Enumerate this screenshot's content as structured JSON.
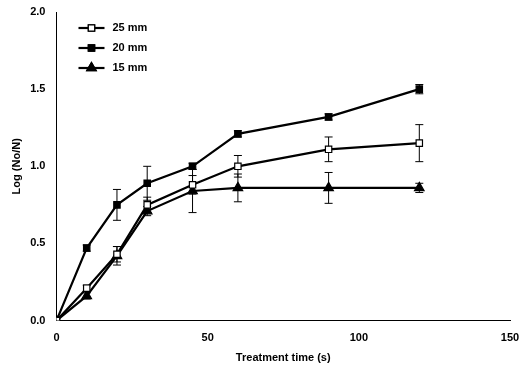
{
  "chart_data": {
    "type": "line",
    "x_label": "Treatment time (s)",
    "y_label": "Log (No/N)",
    "x": [
      0,
      10,
      20,
      30,
      45,
      60,
      90,
      120
    ],
    "series": [
      {
        "name": "25 mm",
        "color": "#000000",
        "marker": "square-open",
        "values": [
          0,
          0.21,
          0.43,
          0.75,
          0.88,
          1.0,
          1.11,
          1.15
        ],
        "errors": [
          0,
          0.02,
          0.05,
          0.05,
          0.06,
          0.07,
          0.08,
          0.12
        ]
      },
      {
        "name": "20 mm",
        "color": "#000000",
        "marker": "square",
        "values": [
          0,
          0.47,
          0.75,
          0.89,
          1.0,
          1.21,
          1.32,
          1.5
        ],
        "errors": [
          0,
          0.02,
          0.1,
          0.11,
          0.02,
          0.02,
          0.02,
          0.03
        ]
      },
      {
        "name": "15 mm",
        "color": "#000000",
        "marker": "triangle",
        "values": [
          0,
          0.16,
          0.42,
          0.71,
          0.84,
          0.86,
          0.86,
          0.86
        ],
        "errors": [
          0,
          0.02,
          0.06,
          0.03,
          0.14,
          0.09,
          0.1,
          0.03
        ]
      }
    ],
    "xlim": [
      0,
      150
    ],
    "xticks": [
      0,
      50,
      100,
      150
    ],
    "ylim": [
      0,
      2
    ],
    "yticks": [
      {
        "value": 0,
        "label": "0.0"
      },
      {
        "value": 0.5,
        "label": "0.5"
      },
      {
        "value": 1,
        "label": "1.0"
      },
      {
        "value": 1.5,
        "label": "1.5"
      },
      {
        "value": 2,
        "label": "2.0"
      }
    ],
    "grid": false,
    "legend": "upper left"
  }
}
